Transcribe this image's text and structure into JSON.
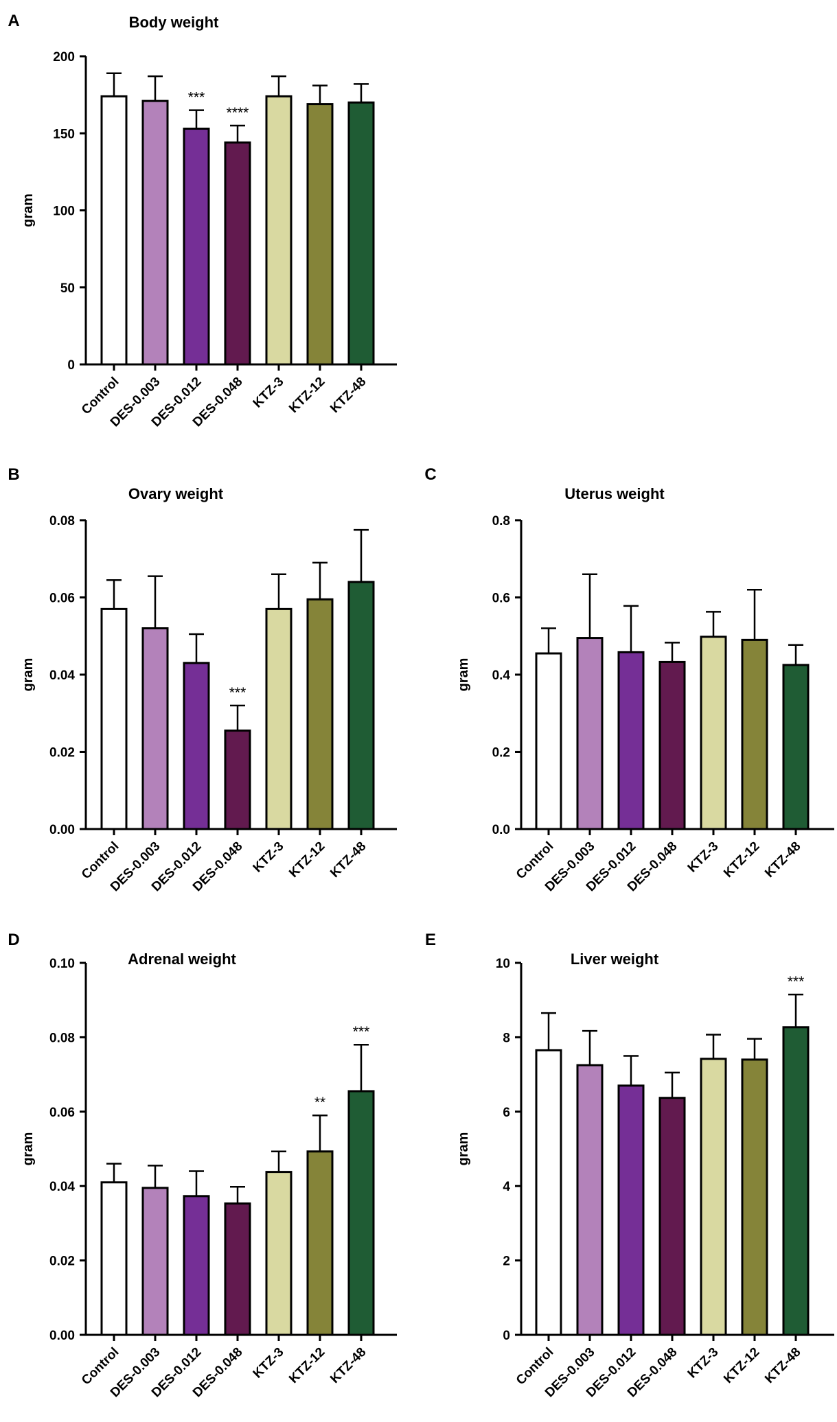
{
  "chart_data": [
    {
      "panel": "A",
      "type": "bar",
      "title": "Body weight",
      "ylabel": "gram",
      "ylim": [
        0,
        200
      ],
      "yticks": [
        "0",
        "50",
        "100",
        "150",
        "200"
      ],
      "categories": [
        "Control",
        "DES-0.003",
        "DES-0.012",
        "DES-0.048",
        "KTZ-3",
        "KTZ-12",
        "KTZ-48"
      ],
      "values": [
        174,
        171,
        153,
        144,
        174,
        169,
        170
      ],
      "errors": [
        15,
        16,
        12,
        11,
        13,
        12,
        12
      ],
      "significance": [
        "",
        "",
        "***",
        "****",
        "",
        "",
        ""
      ]
    },
    {
      "panel": "B",
      "type": "bar",
      "title": "Ovary weight",
      "ylabel": "gram",
      "ylim": [
        0,
        0.08
      ],
      "yticks": [
        "0.00",
        "0.02",
        "0.04",
        "0.06",
        "0.08"
      ],
      "categories": [
        "Control",
        "DES-0.003",
        "DES-0.012",
        "DES-0.048",
        "KTZ-3",
        "KTZ-12",
        "KTZ-48"
      ],
      "values": [
        0.057,
        0.052,
        0.043,
        0.0255,
        0.057,
        0.0595,
        0.064
      ],
      "errors": [
        0.0075,
        0.0135,
        0.0075,
        0.0065,
        0.009,
        0.0095,
        0.0135
      ],
      "significance": [
        "",
        "",
        "",
        "***",
        "",
        "",
        ""
      ]
    },
    {
      "panel": "C",
      "type": "bar",
      "title": "Uterus weight",
      "ylabel": "gram",
      "ylim": [
        0,
        0.8
      ],
      "yticks": [
        "0.0",
        "0.2",
        "0.4",
        "0.6",
        "0.8"
      ],
      "categories": [
        "Control",
        "DES-0.003",
        "DES-0.012",
        "DES-0.048",
        "KTZ-3",
        "KTZ-12",
        "KTZ-48"
      ],
      "values": [
        0.455,
        0.495,
        0.458,
        0.433,
        0.498,
        0.49,
        0.425
      ],
      "errors": [
        0.065,
        0.165,
        0.12,
        0.05,
        0.065,
        0.13,
        0.052
      ],
      "significance": [
        "",
        "",
        "",
        "",
        "",
        "",
        ""
      ]
    },
    {
      "panel": "D",
      "type": "bar",
      "title": "Adrenal weight",
      "ylabel": "gram",
      "ylim": [
        0,
        0.1
      ],
      "yticks": [
        "0.00",
        "0.02",
        "0.04",
        "0.06",
        "0.08",
        "0.10"
      ],
      "categories": [
        "Control",
        "DES-0.003",
        "DES-0.012",
        "DES-0.048",
        "KTZ-3",
        "KTZ-12",
        "KTZ-48"
      ],
      "values": [
        0.041,
        0.0395,
        0.0373,
        0.0353,
        0.0438,
        0.0493,
        0.0655
      ],
      "errors": [
        0.005,
        0.006,
        0.0067,
        0.0045,
        0.0055,
        0.0097,
        0.0125
      ],
      "significance": [
        "",
        "",
        "",
        "",
        "",
        "**",
        "***"
      ]
    },
    {
      "panel": "E",
      "type": "bar",
      "title": "Liver weight",
      "ylabel": "gram",
      "ylim": [
        0,
        10
      ],
      "yticks": [
        "0",
        "2",
        "4",
        "6",
        "8",
        "10"
      ],
      "categories": [
        "Control",
        "DES-0.003",
        "DES-0.012",
        "DES-0.048",
        "KTZ-3",
        "KTZ-12",
        "KTZ-48"
      ],
      "values": [
        7.65,
        7.25,
        6.7,
        6.37,
        7.42,
        7.4,
        8.27
      ],
      "errors": [
        1.0,
        0.92,
        0.8,
        0.68,
        0.65,
        0.56,
        0.88
      ],
      "significance": [
        "",
        "",
        "",
        "",
        "",
        "",
        "***"
      ]
    }
  ],
  "colors": {
    "Control": "#ffffff",
    "DES-0.003": "#b382ba",
    "DES-0.012": "#752f96",
    "DES-0.048": "#621a4f",
    "KTZ-3": "#d9d9a1",
    "KTZ-12": "#858439",
    "KTZ-48": "#1f5c34"
  }
}
